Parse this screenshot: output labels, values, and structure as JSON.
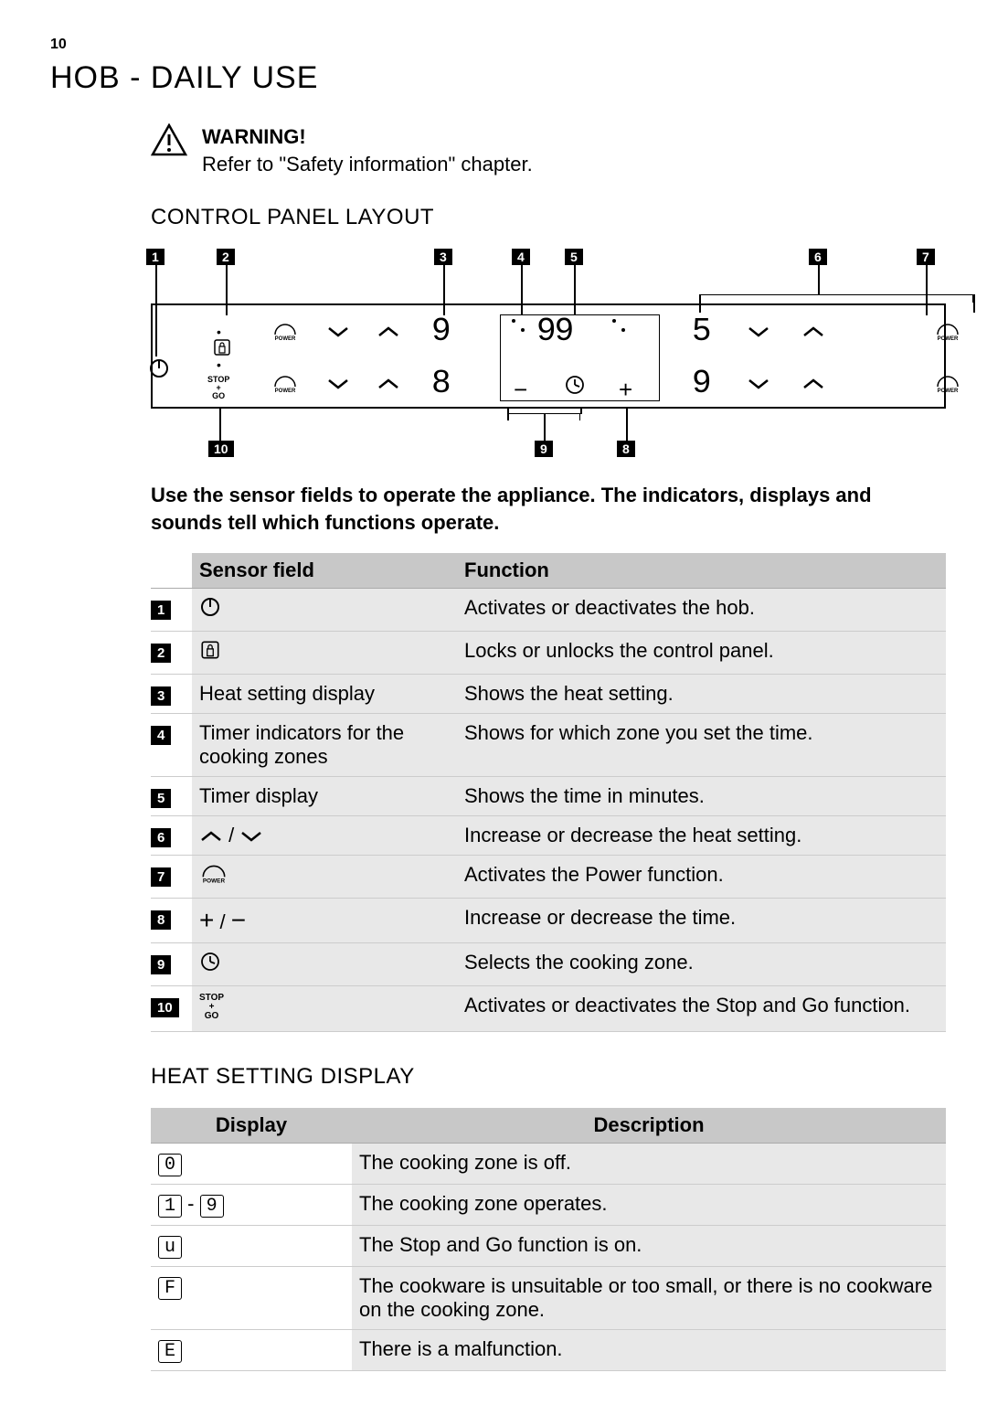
{
  "page_number": "10",
  "title": "HOB - DAILY USE",
  "warning": {
    "heading": "WARNING!",
    "text": "Refer to \"Safety information\" chapter."
  },
  "sections": {
    "control_panel": "CONTROL PANEL LAYOUT",
    "heat_setting": "HEAT SETTING DISPLAY"
  },
  "intro": "Use the sensor fields to operate the appliance. The indicators, displays and sounds tell which functions operate.",
  "diagram": {
    "callouts_top": [
      "1",
      "2",
      "3",
      "4",
      "5",
      "6",
      "7"
    ],
    "callouts_bot": [
      "10",
      "9",
      "8"
    ],
    "row1": {
      "display1": "9",
      "timer": "99",
      "display2": "5"
    },
    "row2": {
      "display1": "8",
      "display2": "9"
    },
    "power_text": "POWER",
    "stopgo_text": "STOP\n+\nGO"
  },
  "sensor_table": {
    "headers": [
      "Sensor field",
      "Function"
    ],
    "rows": [
      {
        "n": "1",
        "sensor_icon": "power-onoff",
        "sensor_text": "",
        "func": "Activates or deactivates the hob."
      },
      {
        "n": "2",
        "sensor_icon": "lock",
        "sensor_text": "",
        "func": "Locks or unlocks the control panel."
      },
      {
        "n": "3",
        "sensor_icon": "",
        "sensor_text": "Heat setting display",
        "func": "Shows the heat setting."
      },
      {
        "n": "4",
        "sensor_icon": "",
        "sensor_text": "Timer indicators for the cooking zones",
        "func": "Shows for which zone you set the time."
      },
      {
        "n": "5",
        "sensor_icon": "",
        "sensor_text": "Timer display",
        "func": "Shows the time in minutes."
      },
      {
        "n": "6",
        "sensor_icon": "chevrons",
        "sensor_text": "",
        "func": "Increase or decrease the heat setting."
      },
      {
        "n": "7",
        "sensor_icon": "power-boost",
        "sensor_text": "",
        "func": "Activates the Power function."
      },
      {
        "n": "8",
        "sensor_icon": "plusminus",
        "sensor_text": "",
        "func": "Increase or decrease the time."
      },
      {
        "n": "9",
        "sensor_icon": "clock",
        "sensor_text": "",
        "func": "Selects the cooking zone."
      },
      {
        "n": "10",
        "sensor_icon": "stopgo",
        "sensor_text": "",
        "func": "Activates or deactivates the Stop and Go function."
      }
    ]
  },
  "heat_table": {
    "headers": [
      "Display",
      "Description"
    ],
    "rows": [
      {
        "disp": "0",
        "range": false,
        "desc": "The cooking zone is off."
      },
      {
        "disp": "1",
        "disp2": "9",
        "range": true,
        "desc": "The cooking zone operates."
      },
      {
        "disp": "u",
        "range": false,
        "desc": "The Stop and Go function is on."
      },
      {
        "disp": "F",
        "range": false,
        "desc": "The cookware is unsuitable or too small, or there is no cookware on the cooking zone."
      },
      {
        "disp": "E",
        "range": false,
        "desc": "There is a malfunction."
      }
    ]
  },
  "colors": {
    "bg": "#ffffff",
    "text": "#000000",
    "table_header": "#c8c8c8",
    "table_row": "#e8e8e8"
  }
}
